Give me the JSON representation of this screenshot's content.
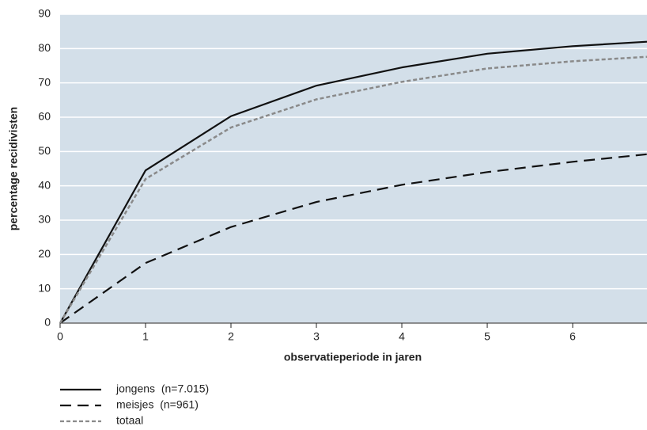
{
  "chart_data": {
    "type": "line",
    "x_label": "observatieperiode in jaren",
    "y_label": "percentage recidivisten",
    "x": [
      0,
      1,
      2,
      3,
      4,
      5,
      6,
      6.87
    ],
    "series": [
      {
        "name": "jongens  (n=7.015)",
        "color": "#111111",
        "dash": "solid",
        "values": [
          0,
          44.5,
          60.3,
          69.2,
          74.5,
          78.5,
          80.7,
          82
        ]
      },
      {
        "name": "meisjes  (n=961)",
        "color": "#111111",
        "dash": "dashed",
        "values": [
          0,
          17.5,
          28,
          35.3,
          40.3,
          44,
          47,
          49.2
        ]
      },
      {
        "name": "totaal",
        "color": "#8a8a8a",
        "dash": "dotted",
        "values": [
          0,
          42,
          57,
          65.2,
          70.3,
          74.2,
          76.3,
          77.6
        ]
      }
    ],
    "xlim": [
      0,
      6.87
    ],
    "xticks": [
      0,
      1,
      2,
      3,
      4,
      5,
      6
    ],
    "ylim": [
      0,
      90
    ],
    "yticks": [
      0,
      10,
      20,
      30,
      40,
      50,
      60,
      70,
      80,
      90
    ],
    "grid": true,
    "plot_background": "#d3dfe9",
    "legend": "bottom-left"
  }
}
